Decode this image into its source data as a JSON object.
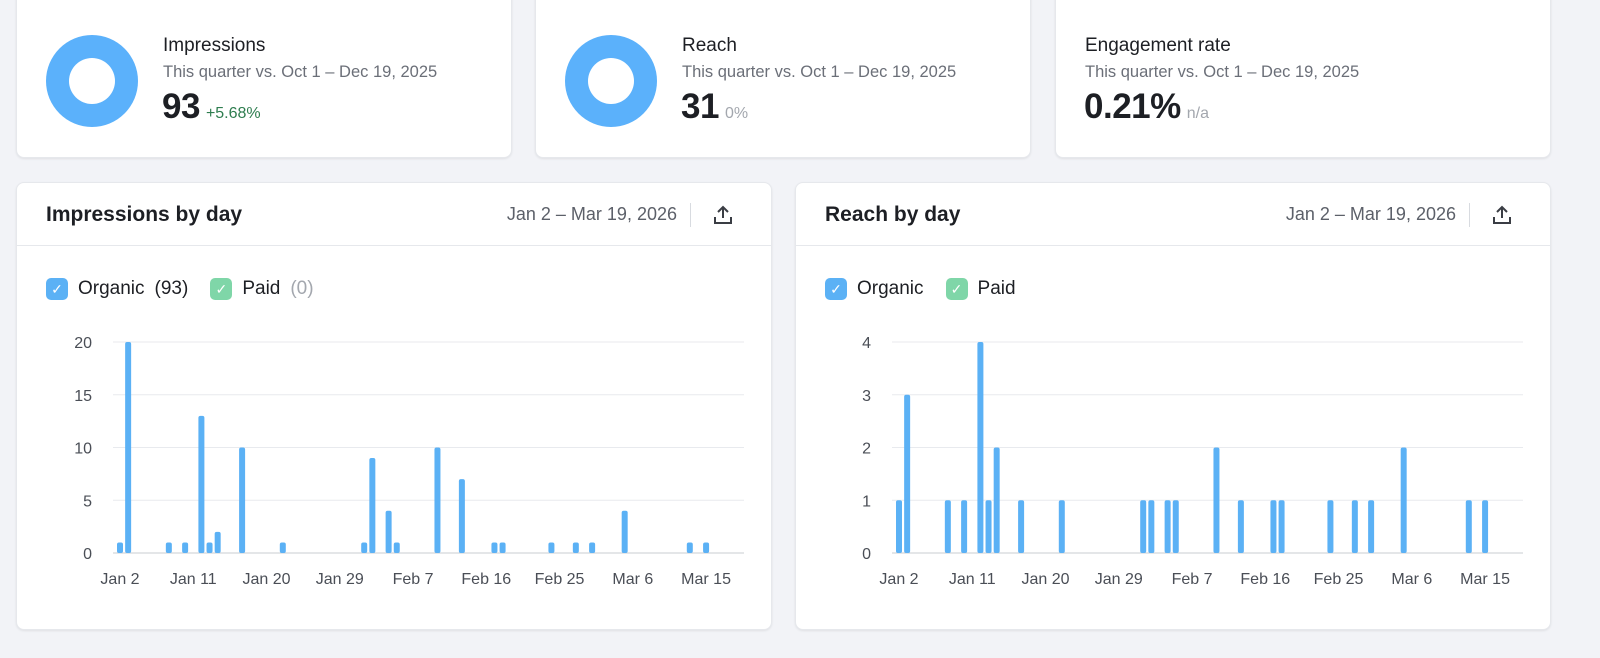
{
  "kpis": [
    {
      "title": "Impressions",
      "subtitle": "This quarter vs. Oct 1 – Dec 19, 2025",
      "value": "93",
      "delta": "+5.68%",
      "delta_color": "#2e7d4f"
    },
    {
      "title": "Reach",
      "subtitle": "This quarter vs. Oct 1 – Dec 19, 2025",
      "value": "31",
      "delta": "0%",
      "delta_color": "#a3a7ae"
    },
    {
      "title": "Engagement rate",
      "subtitle": "This quarter vs. Oct 1 – Dec 19, 2025",
      "value": "0.21%",
      "delta": "n/a",
      "delta_color": "#a3a7ae"
    }
  ],
  "colors": {
    "organic": "#5bb1f5",
    "paid": "#7fd6a8",
    "donut": "#5bb1fb"
  },
  "charts_meta": [
    {
      "title": "Impressions by day",
      "range": "Jan 2 – Mar 19, 2026",
      "export_icon": "upload-icon",
      "legend": [
        {
          "label": "Organic",
          "count": "(93)",
          "checked": true
        },
        {
          "label": "Paid",
          "count": "(0)",
          "checked": true
        }
      ]
    },
    {
      "title": "Reach by day",
      "range": "Jan 2 – Mar 19, 2026",
      "export_icon": "upload-icon",
      "legend": [
        {
          "label": "Organic",
          "count": "",
          "checked": true
        },
        {
          "label": "Paid",
          "count": "",
          "checked": true
        }
      ]
    }
  ],
  "chart_data": [
    {
      "type": "bar",
      "title": "Impressions by day",
      "xlabel": "",
      "ylabel": "",
      "ylim": [
        0,
        20
      ],
      "yticks": [
        "0",
        "5",
        "10",
        "15",
        "20"
      ],
      "xticks": [
        "Jan 2",
        "Jan 11",
        "Jan 20",
        "Jan 29",
        "Feb 7",
        "Feb 16",
        "Feb 25",
        "Mar 6",
        "Mar 15"
      ],
      "x_range": [
        "2026-01-02",
        "2026-03-19"
      ],
      "grid": true,
      "series": [
        {
          "name": "Organic",
          "x": [
            "2026-01-02",
            "2026-01-03",
            "2026-01-08",
            "2026-01-10",
            "2026-01-12",
            "2026-01-13",
            "2026-01-14",
            "2026-01-17",
            "2026-01-22",
            "2026-02-01",
            "2026-02-02",
            "2026-02-04",
            "2026-02-05",
            "2026-02-10",
            "2026-02-13",
            "2026-02-17",
            "2026-02-18",
            "2026-02-24",
            "2026-02-27",
            "2026-03-01",
            "2026-03-05",
            "2026-03-13",
            "2026-03-15"
          ],
          "values": [
            1,
            20,
            1,
            1,
            13,
            1,
            2,
            10,
            1,
            1,
            9,
            4,
            1,
            10,
            7,
            1,
            1,
            1,
            1,
            1,
            4,
            1,
            1
          ]
        }
      ]
    },
    {
      "type": "bar",
      "title": "Reach by day",
      "xlabel": "",
      "ylabel": "",
      "ylim": [
        0,
        4
      ],
      "yticks": [
        "0",
        "1",
        "2",
        "3",
        "4"
      ],
      "xticks": [
        "Jan 2",
        "Jan 11",
        "Jan 20",
        "Jan 29",
        "Feb 7",
        "Feb 16",
        "Feb 25",
        "Mar 6",
        "Mar 15"
      ],
      "x_range": [
        "2026-01-02",
        "2026-03-19"
      ],
      "grid": true,
      "series": [
        {
          "name": "Organic",
          "x": [
            "2026-01-02",
            "2026-01-03",
            "2026-01-08",
            "2026-01-10",
            "2026-01-12",
            "2026-01-13",
            "2026-01-14",
            "2026-01-17",
            "2026-01-22",
            "2026-02-01",
            "2026-02-02",
            "2026-02-04",
            "2026-02-05",
            "2026-02-10",
            "2026-02-13",
            "2026-02-17",
            "2026-02-18",
            "2026-02-24",
            "2026-02-27",
            "2026-03-01",
            "2026-03-05",
            "2026-03-13",
            "2026-03-15"
          ],
          "values": [
            1,
            3,
            1,
            1,
            4,
            1,
            2,
            1,
            1,
            1,
            1,
            1,
            1,
            2,
            1,
            1,
            1,
            1,
            1,
            1,
            2,
            1,
            1
          ]
        }
      ]
    }
  ]
}
